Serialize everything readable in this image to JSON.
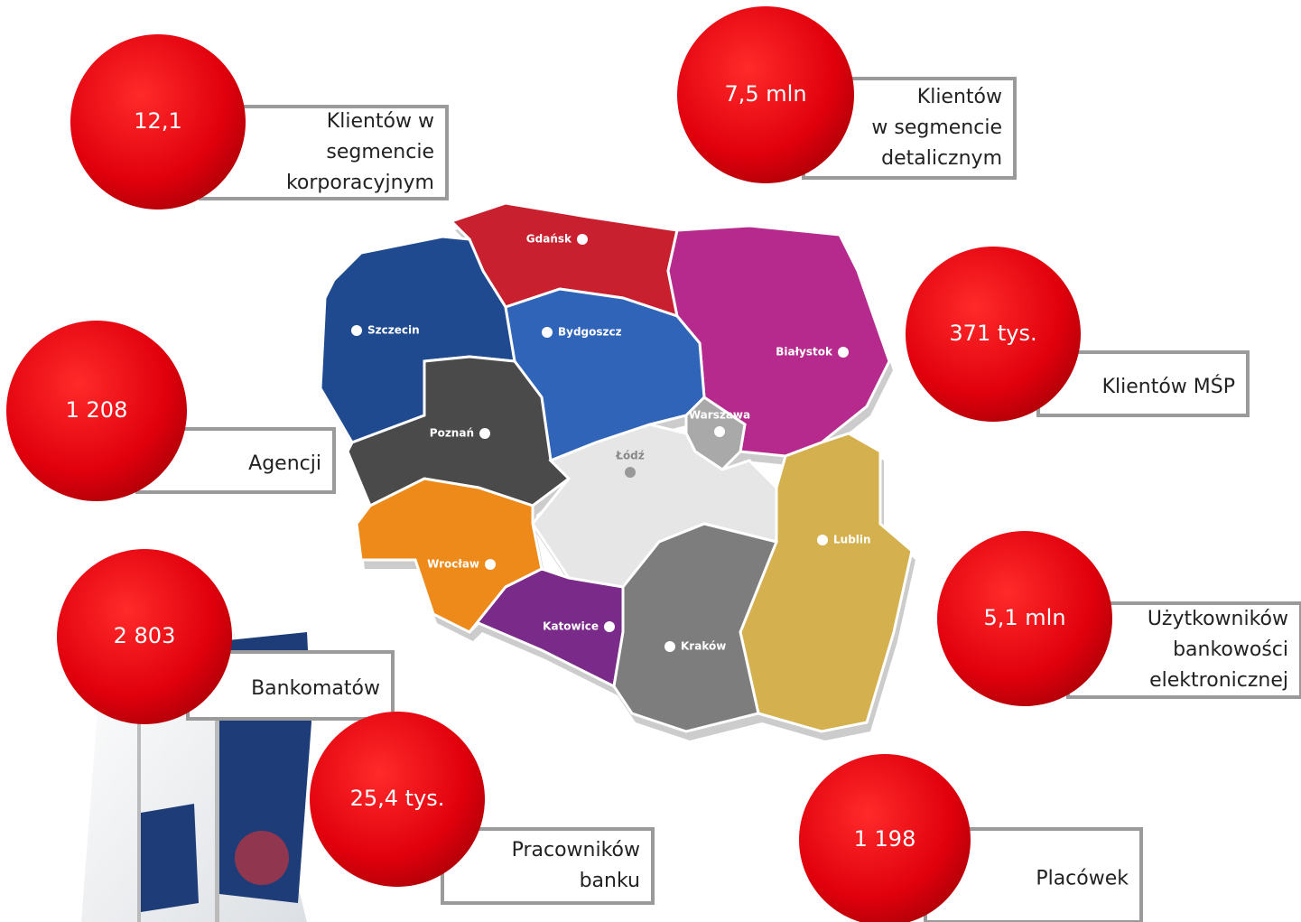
{
  "stats": [
    {
      "value": "12,1",
      "label_lines": [
        "Klientów w",
        "segmencie",
        "korporacyjnym"
      ]
    },
    {
      "value": "7,5 mln",
      "label_lines": [
        "Klientów",
        "w segmencie",
        "detalicznym"
      ]
    },
    {
      "value": "371 tys.",
      "label_lines": [
        "Klientów MŚP"
      ]
    },
    {
      "value": "1 208",
      "label_lines": [
        "Agencji"
      ]
    },
    {
      "value": "2 803",
      "label_lines": [
        "Bankomatów"
      ]
    },
    {
      "value": "5,1 mln",
      "label_lines": [
        "Użytkowników",
        "bankowości",
        "elektronicznej"
      ]
    },
    {
      "value": "25,4 tys.",
      "label_lines": [
        "Pracowników",
        "banku"
      ]
    },
    {
      "value": "1 198",
      "label_lines": [
        "Placówek"
      ]
    }
  ],
  "map": {
    "cities": [
      "Gdańsk",
      "Szczecin",
      "Bydgoszcz",
      "Białystok",
      "Warszawa",
      "Poznań",
      "Łódź",
      "Lublin",
      "Wrocław",
      "Katowice",
      "Kraków"
    ]
  }
}
